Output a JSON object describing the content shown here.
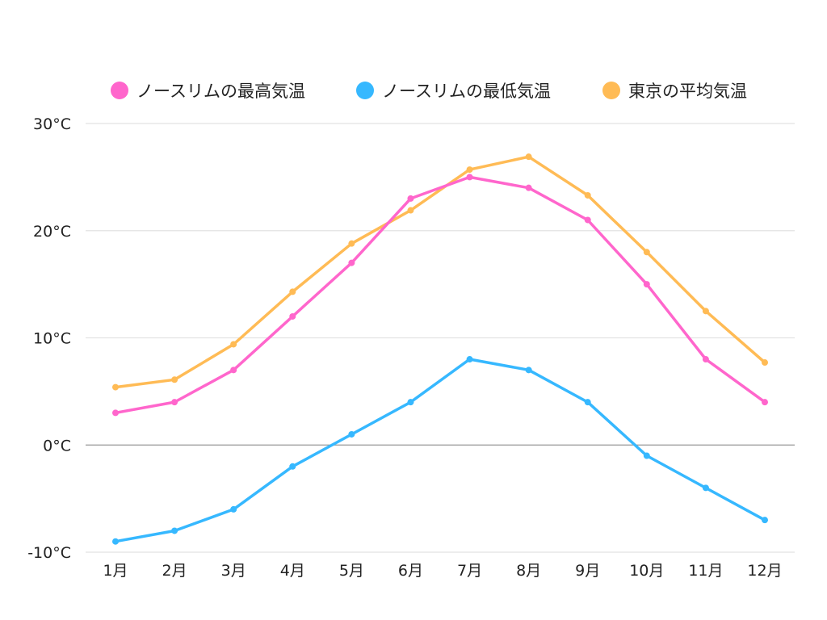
{
  "chart_data": {
    "type": "line",
    "title": "",
    "xlabel": "",
    "ylabel": "",
    "categories": [
      "1月",
      "2月",
      "3月",
      "4月",
      "5月",
      "6月",
      "7月",
      "8月",
      "9月",
      "10月",
      "11月",
      "12月"
    ],
    "ylim": [
      -10,
      30
    ],
    "yticks": [
      30,
      20,
      10,
      0,
      -10
    ],
    "ytick_labels": [
      "30°C",
      "20°C",
      "10°C",
      "0°C",
      "-10°C"
    ],
    "grid": true,
    "legend_position": "top",
    "series": [
      {
        "name": "ノースリムの最高気温",
        "color": "#FF66CC",
        "values": [
          3,
          4,
          7,
          12,
          17,
          23,
          25,
          24,
          21,
          15,
          8,
          4
        ]
      },
      {
        "name": "ノースリムの最低気温",
        "color": "#36B8FF",
        "values": [
          -9,
          -8,
          -6,
          -2,
          1,
          4,
          8,
          7,
          4,
          -1,
          -4,
          -7
        ]
      },
      {
        "name": "東京の平均気温",
        "color": "#FFBB55",
        "values": [
          5.4,
          6.1,
          9.4,
          14.3,
          18.8,
          21.9,
          25.7,
          26.9,
          23.3,
          18.0,
          12.5,
          7.7
        ]
      }
    ]
  }
}
